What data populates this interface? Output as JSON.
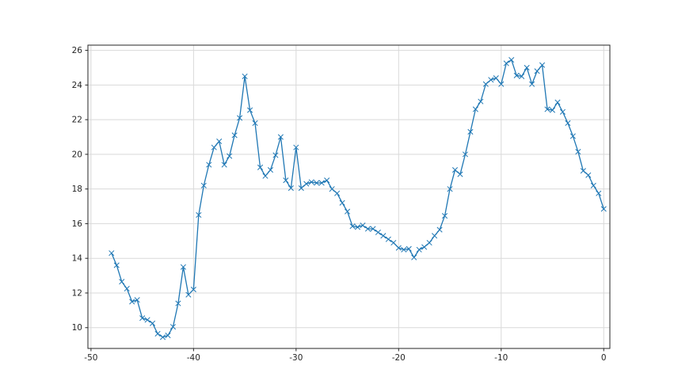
{
  "chart_data": {
    "type": "line",
    "title": "",
    "xlabel": "",
    "ylabel": "",
    "grid": true,
    "legend": "none",
    "x_ticks": [
      -50,
      -40,
      -30,
      -20,
      -10,
      0
    ],
    "y_ticks": [
      10,
      12,
      14,
      16,
      18,
      20,
      22,
      24,
      26
    ],
    "x_tick_labels": [
      "-50",
      "-40",
      "-30",
      "-20",
      "-10",
      "0"
    ],
    "y_tick_labels": [
      "10",
      "12",
      "14",
      "16",
      "18",
      "20",
      "22",
      "24",
      "26"
    ],
    "xlim": [
      -50.3,
      0.6
    ],
    "ylim": [
      8.8,
      26.3
    ],
    "series": [
      {
        "name": "series-0",
        "color": "#1f77b4",
        "marker": "x",
        "x": [
          -48,
          -47.5,
          -47,
          -46.5,
          -46,
          -45.5,
          -45,
          -44.5,
          -44,
          -43.5,
          -43,
          -42.5,
          -42,
          -41.5,
          -41,
          -40.5,
          -40,
          -39.5,
          -39,
          -38.5,
          -38,
          -37.5,
          -37,
          -36.5,
          -36,
          -35.5,
          -35,
          -34.5,
          -34,
          -33.5,
          -33,
          -32.5,
          -32,
          -31.5,
          -31,
          -30.5,
          -30,
          -29.5,
          -29,
          -28.5,
          -28,
          -27.5,
          -27,
          -26.5,
          -26,
          -25.5,
          -25,
          -24.5,
          -24,
          -23.5,
          -23,
          -22.5,
          -22,
          -21.5,
          -21,
          -20.5,
          -20,
          -19.5,
          -19,
          -18.5,
          -18,
          -17.5,
          -17,
          -16.5,
          -16,
          -15.5,
          -15,
          -14.5,
          -14,
          -13.5,
          -13,
          -12.5,
          -12,
          -11.5,
          -11,
          -10.5,
          -10,
          -9.5,
          -9,
          -8.5,
          -8,
          -7.5,
          -7,
          -6.5,
          -6,
          -5.5,
          -5,
          -4.5,
          -4,
          -3.5,
          -3,
          -2.5,
          -2,
          -1.5,
          -1,
          -0.5,
          0
        ],
        "y": [
          14.3,
          13.6,
          12.65,
          12.25,
          11.5,
          11.6,
          10.55,
          10.45,
          10.25,
          9.65,
          9.45,
          9.55,
          10.05,
          11.4,
          13.5,
          11.9,
          12.2,
          16.5,
          18.2,
          19.4,
          20.4,
          20.75,
          19.4,
          19.9,
          21.1,
          22.1,
          24.5,
          22.55,
          21.8,
          19.25,
          18.75,
          19.1,
          19.95,
          21.0,
          18.5,
          18.05,
          20.4,
          18.05,
          18.3,
          18.4,
          18.35,
          18.35,
          18.5,
          18.0,
          17.75,
          17.2,
          16.7,
          15.85,
          15.8,
          15.9,
          15.7,
          15.7,
          15.5,
          15.3,
          15.1,
          14.9,
          14.6,
          14.5,
          14.55,
          14.05,
          14.5,
          14.65,
          14.9,
          15.3,
          15.65,
          16.45,
          18.0,
          19.1,
          18.85,
          20.0,
          21.3,
          22.6,
          23.05,
          24.05,
          24.3,
          24.4,
          24.05,
          25.25,
          25.45,
          24.55,
          24.5,
          25.0,
          24.05,
          24.8,
          25.15,
          22.6,
          22.55,
          23.0,
          22.45,
          21.8,
          21.05,
          20.15,
          19.05,
          18.8,
          18.2,
          17.75,
          16.85
        ]
      }
    ],
    "style": {
      "background": "#ffffff",
      "grid_color": "#d9d9d9",
      "spine_color": "#262626",
      "tick_color": "#262626",
      "tick_label_color": "#262626",
      "line_width": 1.3,
      "marker_size": 3.2
    }
  }
}
